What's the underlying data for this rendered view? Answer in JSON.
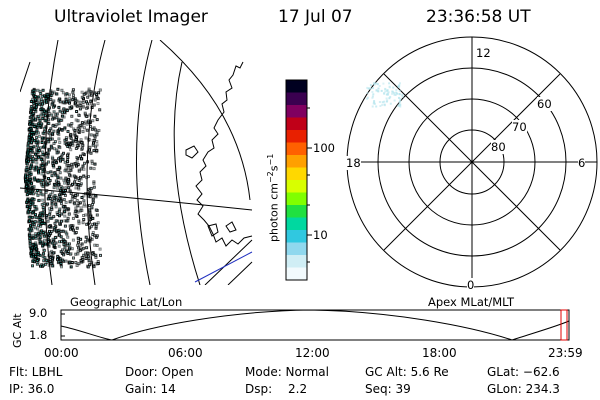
{
  "header": {
    "instrument": "Ultraviolet Imager",
    "date": "17 Jul 07",
    "time": "23:36:58 UT"
  },
  "geo_panel": {
    "label": "Geographic Lat/Lon"
  },
  "colorbar": {
    "unit_label": "photon cm",
    "unit_sup1": "−2",
    "unit_mid": "s",
    "unit_sup2": "−1",
    "tick_100": "100",
    "tick_10": "10",
    "colors": [
      "#000020",
      "#3a0050",
      "#800060",
      "#c00018",
      "#e82000",
      "#ff6000",
      "#ffa000",
      "#ffd800",
      "#d8ff00",
      "#80ff00",
      "#20e040",
      "#00d8a0",
      "#30c8e0",
      "#90d8ee",
      "#d0eef5",
      "#f2fafd"
    ]
  },
  "polar_panel": {
    "label": "Apex MLat/MLT",
    "mlt_12": "12",
    "mlt_18": "18",
    "mlt_6": "6",
    "mlt_0": "0",
    "lat_60": "60",
    "lat_70": "70",
    "lat_80": "80"
  },
  "timeline": {
    "ylabel": "GC Alt",
    "y_max": "9.0",
    "y_min": "1.8",
    "x_ticks": [
      "00:00",
      "06:00",
      "12:00",
      "18:00",
      "23:59"
    ]
  },
  "footer": {
    "flt": "Flt: LBHL",
    "door": "Door: Open",
    "mode": "Mode: Normal",
    "gc_alt": "GC Alt: 5.6 Re",
    "glat": "GLat: −62.6",
    "ip": "IP: 36.0",
    "gain": "Gain: 14",
    "dsp_label": "Dsp:",
    "dsp_value": "2.2",
    "seq": "Seq: 39",
    "glon": "GLon: 234.3"
  }
}
